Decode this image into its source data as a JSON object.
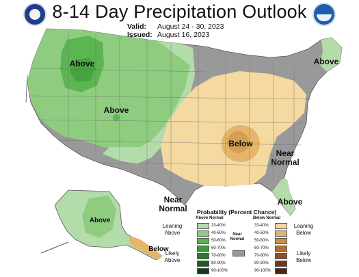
{
  "title": "8-14 Day Precipitation Outlook",
  "valid_label": "Valid:",
  "valid_value": "August 24 - 30, 2023",
  "issued_label": "Issued:",
  "issued_value": "August 16, 2023",
  "map_labels": {
    "above_nw": "Above",
    "above_rockies": "Above",
    "above_ne": "Above",
    "below_midsouth": "Below",
    "near_normal_se": "Near Normal",
    "near_normal_sw": "Near Normal",
    "above_florida": "Above",
    "above_alaska": "Above",
    "below_alaska": "Below"
  },
  "legend": {
    "title": "Probability (Percent Chance)",
    "above_header": "Above Normal",
    "below_header": "Below Normal",
    "near_header": "Near Normal",
    "leaning_above": "Leaning Above",
    "likely_above": "Likely Above",
    "leaning_below": "Leaning Below",
    "likely_below": "Likely Below",
    "bins": [
      "33-40%",
      "40-50%",
      "50-60%",
      "60-70%",
      "70-80%",
      "80-90%",
      "90-100%"
    ],
    "above_colors": [
      "#b4dcab",
      "#8fcc80",
      "#5bb551",
      "#3e9a3b",
      "#2b7a2c",
      "#1d5a1e",
      "#133d14"
    ],
    "below_colors": [
      "#f4d9a0",
      "#e4b56a",
      "#cc8f45",
      "#b16f33",
      "#8f5224",
      "#6e3a18",
      "#4d250e"
    ],
    "near_color": "#999999"
  },
  "colors": {
    "ocean": "#ffffff",
    "near_normal": "#999999",
    "boundary": "#555555"
  }
}
